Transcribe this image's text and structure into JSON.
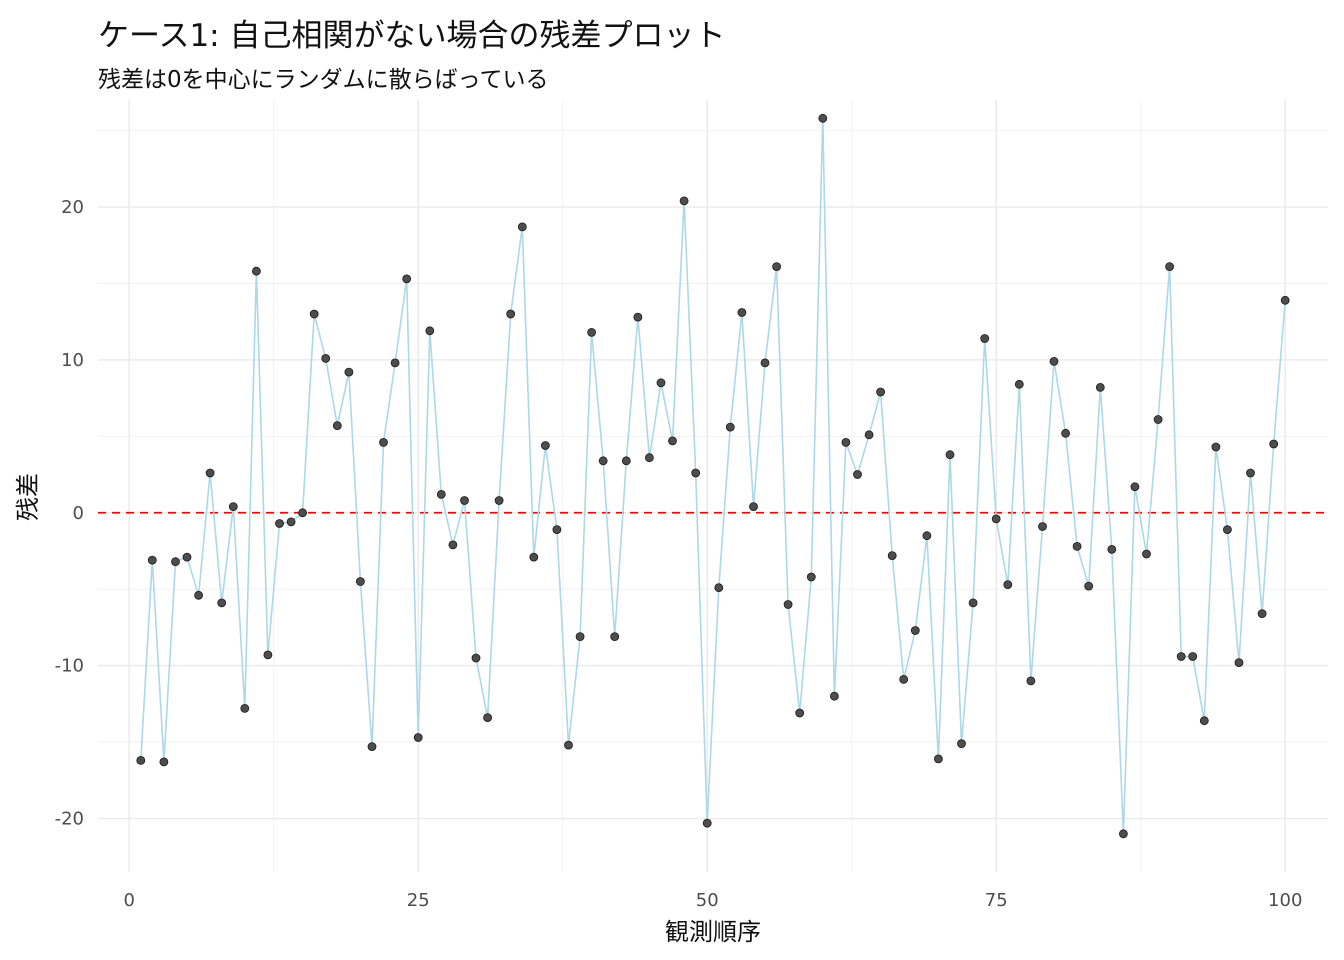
{
  "chart_data": {
    "type": "line",
    "title": "ケース1: 自己相関がない場合の残差プロット",
    "subtitle": "残差は0を中心にランダムに散らばっている",
    "xlabel": "観測順序",
    "ylabel": "残差",
    "xlim": [
      -2.7,
      103.7
    ],
    "ylim": [
      -23.5,
      27.0
    ],
    "x_ticks": [
      0,
      25,
      50,
      75,
      100
    ],
    "y_ticks": [
      -20,
      -10,
      0,
      10,
      20
    ],
    "reference_line": {
      "y": 0,
      "style": "dashed",
      "color": "#ff0000"
    },
    "line_color": "#add8e6",
    "point_color": "#4d4d4d",
    "grid": true,
    "series": [
      {
        "x": [
          1,
          2,
          3,
          4,
          5,
          6,
          7,
          8,
          9,
          10,
          11,
          12,
          13,
          14,
          15,
          16,
          17,
          18,
          19,
          20,
          21,
          22,
          23,
          24,
          25,
          26,
          27,
          28,
          29,
          30,
          31,
          32,
          33,
          34,
          35,
          36,
          37,
          38,
          39,
          40,
          41,
          42,
          43,
          44,
          45,
          46,
          47,
          48,
          49,
          50,
          51,
          52,
          53,
          54,
          55,
          56,
          57,
          58,
          59,
          60,
          61,
          62,
          63,
          64,
          65,
          66,
          67,
          68,
          69,
          70,
          71,
          72,
          73,
          74,
          75,
          76,
          77,
          78,
          79,
          80,
          81,
          82,
          83,
          84,
          85,
          86,
          87,
          88,
          89,
          90,
          91,
          92,
          93,
          94,
          95,
          96,
          97,
          98,
          99,
          100
        ],
        "values": [
          -16.2,
          -3.1,
          -16.3,
          -3.2,
          -2.9,
          -5.4,
          2.6,
          -5.9,
          0.4,
          -12.8,
          15.8,
          -9.3,
          -0.7,
          -0.6,
          0.0,
          13.0,
          10.1,
          5.7,
          9.2,
          -4.5,
          -15.3,
          4.6,
          9.8,
          15.3,
          -14.7,
          11.9,
          1.2,
          -2.1,
          0.8,
          -9.5,
          -13.4,
          0.8,
          13.0,
          18.7,
          -2.9,
          4.4,
          -1.1,
          -15.2,
          -8.1,
          11.8,
          3.4,
          -8.1,
          3.4,
          12.8,
          3.6,
          8.5,
          4.7,
          20.4,
          2.6,
          -20.3,
          -4.9,
          5.6,
          13.1,
          0.4,
          9.8,
          16.1,
          -6.0,
          -13.1,
          -4.2,
          25.8,
          -12.0,
          4.6,
          2.5,
          5.1,
          7.9,
          -2.8,
          -10.9,
          -7.7,
          -1.5,
          -16.1,
          3.8,
          -15.1,
          -5.9,
          11.4,
          -0.4,
          -4.7,
          8.4,
          -11.0,
          -0.9,
          9.9,
          5.2,
          -2.2,
          -4.8,
          8.2,
          -2.4,
          -21.0,
          1.7,
          -2.7,
          6.1,
          16.1,
          -9.4,
          -9.4,
          -13.6,
          4.3,
          -1.1,
          -9.8,
          2.6,
          -6.6,
          4.5,
          13.9
        ]
      }
    ]
  }
}
